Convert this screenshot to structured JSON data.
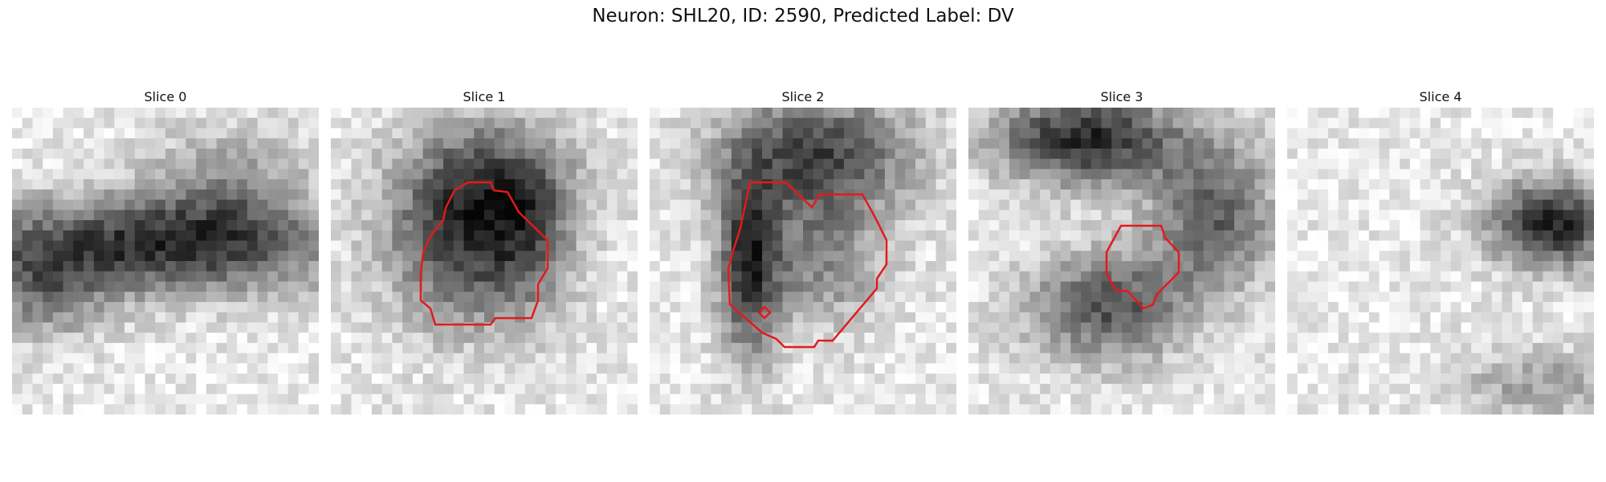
{
  "title": "Neuron: SHL20, ID: 2590, Predicted Label: DV",
  "slices": [
    {
      "label": "Slice 0",
      "has_contour": false
    },
    {
      "label": "Slice 1",
      "has_contour": true
    },
    {
      "label": "Slice 2",
      "has_contour": true
    },
    {
      "label": "Slice 3",
      "has_contour": true
    },
    {
      "label": "Slice 4",
      "has_contour": false
    }
  ],
  "colors": {
    "contour": "#e31a1c",
    "background": "#ffffff"
  }
}
